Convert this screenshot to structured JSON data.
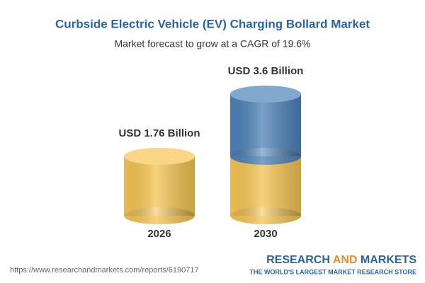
{
  "chart_data": {
    "type": "cylinder-bar",
    "title": "Curbside Electric Vehicle (EV) Charging Bollard Market",
    "subtitle": "Market forecast to grow at a CAGR of 19.6%",
    "categories": [
      "2026",
      "2030"
    ],
    "values": [
      1.76,
      3.6
    ],
    "value_labels": [
      "USD 1.76 Billion",
      "USD 3.6 Billion"
    ],
    "colors": [
      "#f5c452",
      "#4d82b8"
    ]
  },
  "footer": {
    "url": "https://www.researchandmarkets.com/reports/6190717",
    "logo": [
      "RESEARCH",
      "AND",
      "MARKETS"
    ],
    "tagline": "THE WORLD'S LARGEST MARKET RESEARCH STORE"
  }
}
